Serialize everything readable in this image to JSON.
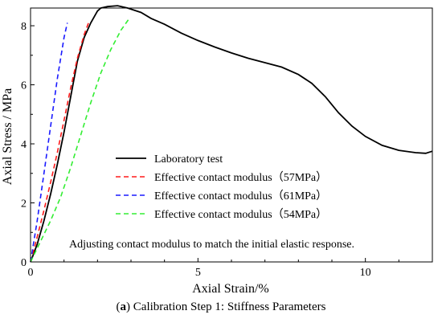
{
  "caption": {
    "label": "a",
    "text": "Calibration Step 1: Stiffness Parameters"
  },
  "chart_data": {
    "type": "line",
    "xlabel": "Axial Strain/%",
    "ylabel": "Axial Stress / MPa",
    "xlim": [
      0,
      12
    ],
    "ylim": [
      0,
      8.6
    ],
    "xticks": [
      0,
      5,
      10
    ],
    "yticks": [
      0,
      2,
      4,
      6,
      8
    ],
    "grid": false,
    "legend_position": "center-left",
    "annotation": "Adjusting contact modulus to match the initial elastic response.",
    "series": [
      {
        "name": "Laboratory test",
        "color": "#000000",
        "style": "solid",
        "x": [
          0,
          0.2,
          0.4,
          0.6,
          0.8,
          1.0,
          1.2,
          1.4,
          1.6,
          1.8,
          2.0,
          2.1,
          2.3,
          2.6,
          2.9,
          3.3,
          3.6,
          4.0,
          4.5,
          5.0,
          5.5,
          6.0,
          6.5,
          7.0,
          7.5,
          8.0,
          8.4,
          8.8,
          9.2,
          9.6,
          10.0,
          10.5,
          11.0,
          11.5,
          11.8,
          12.0
        ],
        "y": [
          0,
          0.6,
          1.4,
          2.3,
          3.3,
          4.4,
          5.6,
          6.8,
          7.6,
          8.1,
          8.5,
          8.6,
          8.65,
          8.68,
          8.6,
          8.45,
          8.25,
          8.05,
          7.75,
          7.5,
          7.28,
          7.08,
          6.9,
          6.75,
          6.6,
          6.35,
          6.05,
          5.6,
          5.05,
          4.6,
          4.25,
          3.95,
          3.78,
          3.7,
          3.68,
          3.75
        ]
      },
      {
        "name": "Effective contact modulus（57MPa）",
        "color": "#ff1a1a",
        "style": "dashed",
        "x": [
          0,
          0.2,
          0.4,
          0.6,
          0.8,
          1.0,
          1.2,
          1.4,
          1.6,
          1.75
        ],
        "y": [
          0,
          0.85,
          1.75,
          2.7,
          3.7,
          4.8,
          5.9,
          6.9,
          7.7,
          8.15
        ]
      },
      {
        "name": "Effective contact modulus（61MPa）",
        "color": "#1a1aff",
        "style": "dashed",
        "x": [
          0,
          0.2,
          0.4,
          0.6,
          0.8,
          1.0,
          1.1
        ],
        "y": [
          0,
          1.4,
          3.0,
          4.6,
          6.2,
          7.6,
          8.1
        ]
      },
      {
        "name": "Effective contact modulus（54MPa）",
        "color": "#33ee33",
        "style": "dashed",
        "x": [
          0,
          0.3,
          0.6,
          0.9,
          1.2,
          1.5,
          1.8,
          2.1,
          2.4,
          2.7,
          2.95
        ],
        "y": [
          0,
          0.7,
          1.4,
          2.2,
          3.2,
          4.3,
          5.4,
          6.4,
          7.2,
          7.85,
          8.25
        ]
      }
    ]
  }
}
